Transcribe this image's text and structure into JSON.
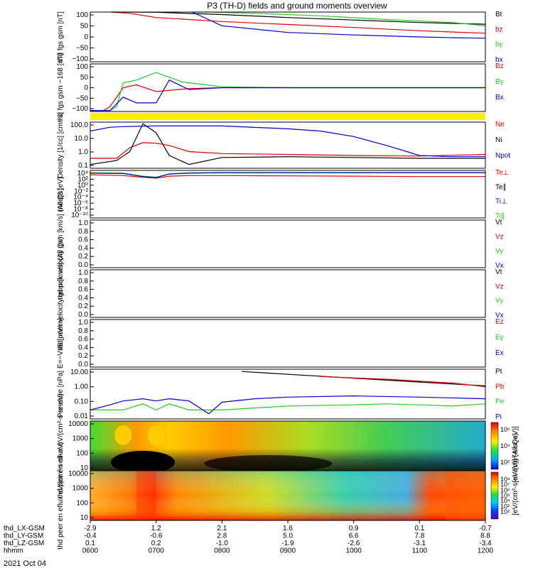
{
  "title": "P3 (TH-D) fields and ground moments overview",
  "date_label": "2021 Oct 04",
  "footer": {
    "row_labels": [
      "thd_LX-GSM",
      "thd_LY-GSM",
      "thd_LZ-GSM",
      "hhmm"
    ],
    "columns": [
      [
        "-2.9",
        "-0.4",
        "0.1",
        "0600"
      ],
      [
        "1.2",
        "-0.6",
        "0.2",
        "0700"
      ],
      [
        "2.1",
        "2.8",
        "-1.0",
        "0800"
      ],
      [
        "1.6",
        "5.0",
        "-1.9",
        "0900"
      ],
      [
        "0.9",
        "6.6",
        "-2.6",
        "1000"
      ],
      [
        "0.1",
        "7.8",
        "-3.1",
        "1100"
      ],
      [
        "-0.7",
        "8.8",
        "-3.4",
        "1200"
      ]
    ]
  },
  "colors": {
    "black": "#000000",
    "red": "#dd0000",
    "green": "#22cc22",
    "blue": "#0000cc",
    "bar": "#ffee00"
  },
  "chart_data": [
    {
      "type": "line",
      "ylabel": "thd fgs gsm [nT]",
      "ylim": [
        -100,
        100
      ],
      "ticks": [
        "100",
        "50",
        "0",
        "−50",
        "−100"
      ],
      "legend": [
        "Bt",
        "bz",
        "by",
        "bx"
      ],
      "series": [
        {
          "name": "Bt",
          "color": "black",
          "x": [
            0.32,
            0.6,
            1.0,
            2.0,
            3.0,
            4.0,
            5.0,
            6.0
          ],
          "y": [
            100,
            100,
            99,
            90,
            78,
            68,
            58,
            51
          ]
        },
        {
          "name": "bz",
          "color": "red",
          "x": [
            0.32,
            0.6,
            1.0,
            2.0,
            3.0,
            4.0,
            5.0,
            6.0
          ],
          "y": [
            100,
            95,
            78,
            62,
            50,
            38,
            25,
            15
          ]
        },
        {
          "name": "by",
          "color": "green",
          "x": [
            1.55,
            1.8,
            2.5,
            3.5,
            4.5,
            5.5,
            6.0
          ],
          "y": [
            100,
            100,
            95,
            85,
            70,
            58,
            45
          ]
        },
        {
          "name": "bx",
          "color": "blue",
          "x": [
            1.55,
            2.0,
            3.0,
            4.0,
            5.0,
            5.5,
            6.0
          ],
          "y": [
            100,
            45,
            18,
            8,
            0,
            -3,
            -5
          ]
        }
      ]
    },
    {
      "type": "line",
      "ylabel": "thd fgs gsm −168 [nT]",
      "ylim": [
        -125,
        125
      ],
      "ticks": [
        "100",
        "50",
        "0",
        "−50",
        "−100"
      ],
      "legend": [
        "Bz",
        "By",
        "Bx"
      ],
      "series": [
        {
          "name": "Bz",
          "color": "red",
          "x": [
            0.0,
            0.2,
            0.3,
            0.5,
            0.7,
            1.0,
            1.5,
            2.0,
            3.0,
            6.0
          ],
          "y": [
            -120,
            -120,
            -100,
            0,
            15,
            -20,
            -5,
            0,
            0,
            0
          ]
        },
        {
          "name": "By",
          "color": "green",
          "x": [
            0.0,
            0.3,
            0.4,
            0.5,
            0.7,
            1.0,
            1.4,
            2.0,
            3.0,
            6.0
          ],
          "y": [
            -120,
            -120,
            -100,
            25,
            40,
            80,
            30,
            5,
            0,
            0
          ]
        },
        {
          "name": "Bx",
          "color": "blue",
          "x": [
            0.0,
            0.3,
            0.5,
            0.7,
            1.0,
            1.2,
            1.5,
            2.0,
            3.0,
            6.0
          ],
          "y": [
            -120,
            -120,
            -50,
            -80,
            -80,
            40,
            -10,
            0,
            0,
            0
          ]
        }
      ]
    },
    {
      "type": "line",
      "ylabel": "Density [1/cc] [cm−3]",
      "scale": "log",
      "ylim": [
        0.05,
        200
      ],
      "ticks": [
        "100.0",
        "10.0",
        "1.0",
        "0.1"
      ],
      "legend": [
        "Ne",
        "Ni",
        "Npot"
      ],
      "series": [
        {
          "name": "Ne",
          "color": "red",
          "x": [
            0.0,
            0.4,
            0.6,
            0.8,
            1.0,
            1.2,
            1.5,
            2.0,
            3.0,
            4.0,
            5.0,
            6.0
          ],
          "y": [
            0.3,
            0.3,
            2.0,
            5.0,
            4.5,
            3.0,
            1.0,
            0.7,
            0.6,
            0.5,
            0.45,
            0.6
          ]
        },
        {
          "name": "Ni",
          "color": "black",
          "x": [
            0.0,
            0.4,
            0.6,
            0.8,
            1.0,
            1.2,
            1.5,
            2.0,
            3.0,
            4.0,
            5.0,
            6.0
          ],
          "y": [
            0.1,
            0.2,
            1.0,
            150,
            30,
            0.5,
            0.1,
            0.35,
            0.4,
            0.35,
            0.3,
            0.3
          ]
        },
        {
          "name": "Npot",
          "color": "blue",
          "x": [
            0.0,
            0.3,
            0.5,
            1.0,
            1.5,
            2.0,
            3.0,
            3.5,
            4.0,
            4.5,
            5.0,
            5.5,
            6.0
          ],
          "y": [
            40,
            80,
            90,
            100,
            100,
            100,
            60,
            40,
            15,
            3,
            0.5,
            0.4,
            0.4
          ]
        }
      ]
    },
    {
      "type": "line",
      "ylabel": "moqt3 [eV]",
      "scale": "log",
      "ylim": [
        1e-10,
        10000.0
      ],
      "ticks": [
        "10⁴",
        "10²",
        "10⁰",
        "10⁻²",
        "10⁻⁴",
        "10⁻⁶",
        "10⁻⁸",
        "10⁻¹⁰"
      ],
      "legend": [
        "Te⊥",
        "Te∥",
        "Ti⊥",
        "Ti∥"
      ],
      "series": [
        {
          "name": "Te⊥",
          "color": "red",
          "x": [
            0.0,
            0.5,
            0.8,
            1.0,
            1.2,
            1.5,
            2.0,
            3.0,
            4.0,
            5.0,
            6.0
          ],
          "y": [
            500,
            300,
            100,
            50,
            200,
            300,
            300,
            250,
            200,
            150,
            150
          ]
        },
        {
          "name": "Ti∥",
          "color": "green",
          "x": [
            0.0,
            0.5,
            0.8,
            1.0,
            1.2,
            1.5,
            2.0,
            3.0,
            4.0,
            5.0,
            6.0
          ],
          "y": [
            2000,
            1500,
            200,
            100,
            1000,
            2000,
            2500,
            2500,
            2500,
            2500,
            2500
          ]
        },
        {
          "name": "Ti⊥",
          "color": "blue",
          "x": [
            0.0,
            0.5,
            0.8,
            1.0,
            1.2,
            1.5,
            2.0,
            3.0,
            4.0,
            5.0,
            6.0
          ],
          "y": [
            1500,
            1200,
            150,
            80,
            800,
            1500,
            2000,
            2000,
            2000,
            2000,
            2000
          ]
        }
      ]
    },
    {
      "type": "line",
      "ylabel": "thd peir velocity gsm [km/s] (All Qs)",
      "ylim": [
        0,
        1
      ],
      "ticks": [
        "1.0",
        "0.8",
        "0.6",
        "0.4",
        "0.2",
        "0.0"
      ],
      "legend": [
        "Vt",
        "Vz",
        "Vy",
        "Vx"
      ],
      "series": []
    },
    {
      "type": "line",
      "ylabel": "thd peer velocity gsm [km/s] (All Qs)",
      "ylim": [
        0,
        1
      ],
      "ticks": [
        "1.0",
        "0.8",
        "0.6",
        "0.4",
        "0.2",
        "0.0"
      ],
      "legend": [
        "Vt",
        "Vz",
        "Vy",
        "Vx"
      ],
      "series": []
    },
    {
      "type": "line",
      "ylabel": "E=−VxB [mV/m]",
      "ylim": [
        0,
        1
      ],
      "ticks": [
        "1.0",
        "0.8",
        "0.6",
        "0.4",
        "0.2",
        "0.0"
      ],
      "legend": [
        "Ez",
        "Ey",
        "Ex"
      ],
      "series": []
    },
    {
      "type": "line",
      "ylabel": "Pressure [nPa]",
      "scale": "log",
      "ylim": [
        0.004,
        30
      ],
      "ticks": [
        "10.00",
        "1.00",
        "0.10",
        "0.01"
      ],
      "legend": [
        "Pt",
        "Pb",
        "Pe",
        "Pi"
      ],
      "series": [
        {
          "name": "Pt",
          "color": "black",
          "x": [
            2.3,
            3.0,
            4.0,
            5.0,
            6.0
          ],
          "y": [
            20,
            12,
            6,
            3,
            1.5
          ]
        },
        {
          "name": "Pb",
          "color": "red",
          "x": [
            3.5,
            4.5,
            5.5,
            6.0
          ],
          "y": [
            8,
            5,
            2.5,
            1.3
          ]
        },
        {
          "name": "Pe",
          "color": "green",
          "x": [
            0.0,
            0.5,
            0.8,
            1.0,
            1.2,
            1.5,
            2.0,
            3.0,
            4.0,
            4.5,
            5.0,
            5.5,
            6.0
          ],
          "y": [
            0.02,
            0.02,
            0.06,
            0.02,
            0.06,
            0.02,
            0.02,
            0.04,
            0.05,
            0.06,
            0.05,
            0.04,
            0.06
          ]
        },
        {
          "name": "Pi",
          "color": "blue",
          "x": [
            0.0,
            0.3,
            0.5,
            0.8,
            1.0,
            1.2,
            1.5,
            1.8,
            2.0,
            2.5,
            3.0,
            4.0,
            5.0,
            6.0
          ],
          "y": [
            0.02,
            0.05,
            0.1,
            0.15,
            0.1,
            0.15,
            0.1,
            0.01,
            0.08,
            0.15,
            0.2,
            0.25,
            0.2,
            0.15
          ]
        }
      ]
    },
    {
      "type": "heatmap",
      "ylabel": "thd peir en eflux eV/(cm²-s-sr-eV)",
      "scale": "log",
      "ylim": [
        5,
        20000
      ],
      "ticks": [
        "10000",
        "1000",
        "100",
        "10"
      ],
      "colorbar": {
        "label": "[eV/(cm²-s-sr-eV)] (All Qs)",
        "ticks": [
          "10⁶",
          "10⁴",
          "10²"
        ]
      }
    },
    {
      "type": "heatmap",
      "ylabel": "thd peer en eflux eV/(cm²-s-sr-eV)",
      "scale": "log",
      "ylim": [
        5,
        20000
      ],
      "ticks": [
        "10000",
        "1000",
        "100",
        "10"
      ],
      "colorbar": {
        "label": "[eV/(cm²-s-sr-eV)]",
        "ticks": [
          "10⁸",
          "10⁷",
          "10⁶",
          "10⁵",
          "10⁴",
          "10³",
          "10²"
        ]
      }
    }
  ]
}
